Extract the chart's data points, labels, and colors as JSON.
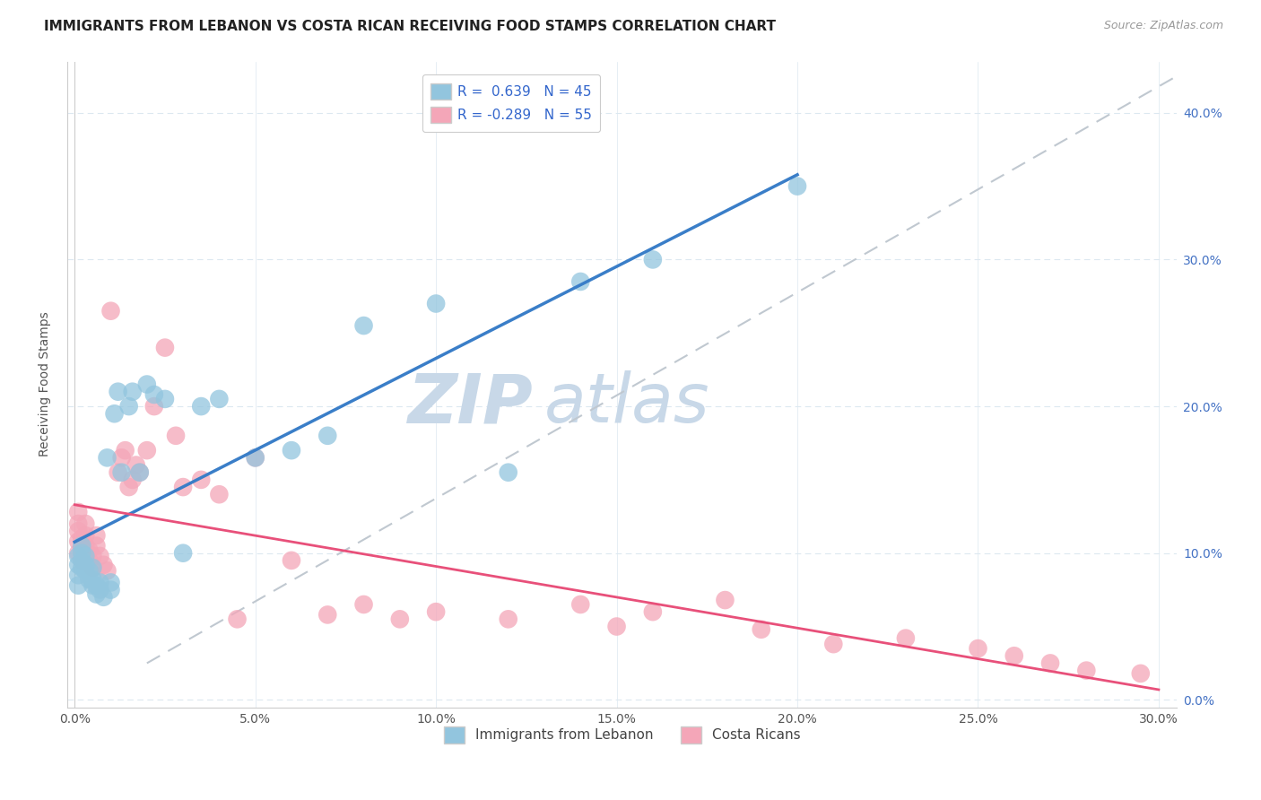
{
  "title": "IMMIGRANTS FROM LEBANON VS COSTA RICAN RECEIVING FOOD STAMPS CORRELATION CHART",
  "source": "Source: ZipAtlas.com",
  "ylabel": "Receiving Food Stamps",
  "xlabel_ticks": [
    "0.0%",
    "5.0%",
    "10.0%",
    "15.0%",
    "20.0%",
    "25.0%",
    "30.0%"
  ],
  "xlabel_vals": [
    0.0,
    0.05,
    0.1,
    0.15,
    0.2,
    0.25,
    0.3
  ],
  "ylabel_ticks": [
    "0.0%",
    "10.0%",
    "20.0%",
    "30.0%",
    "40.0%"
  ],
  "ylabel_vals": [
    0.0,
    0.1,
    0.2,
    0.3,
    0.4
  ],
  "xlim": [
    -0.002,
    0.305
  ],
  "ylim": [
    -0.005,
    0.435
  ],
  "blue_R": 0.639,
  "blue_N": 45,
  "pink_R": -0.289,
  "pink_N": 55,
  "blue_color": "#92c5de",
  "pink_color": "#f4a6b8",
  "blue_line_color": "#3a7ec8",
  "pink_line_color": "#e8507a",
  "ref_line_color": "#c0c8d0",
  "background_color": "#ffffff",
  "grid_color": "#dce8f0",
  "legend_label_blue": "Immigrants from Lebanon",
  "legend_label_pink": "Costa Ricans",
  "blue_scatter_x": [
    0.001,
    0.001,
    0.001,
    0.001,
    0.002,
    0.002,
    0.002,
    0.002,
    0.003,
    0.003,
    0.003,
    0.004,
    0.004,
    0.005,
    0.005,
    0.005,
    0.006,
    0.006,
    0.007,
    0.007,
    0.008,
    0.009,
    0.01,
    0.01,
    0.011,
    0.012,
    0.013,
    0.015,
    0.016,
    0.018,
    0.02,
    0.022,
    0.025,
    0.03,
    0.035,
    0.04,
    0.05,
    0.06,
    0.07,
    0.08,
    0.1,
    0.12,
    0.14,
    0.16,
    0.2
  ],
  "blue_scatter_y": [
    0.078,
    0.085,
    0.092,
    0.098,
    0.09,
    0.095,
    0.1,
    0.105,
    0.088,
    0.092,
    0.098,
    0.082,
    0.088,
    0.078,
    0.082,
    0.09,
    0.072,
    0.078,
    0.075,
    0.08,
    0.07,
    0.165,
    0.075,
    0.08,
    0.195,
    0.21,
    0.155,
    0.2,
    0.21,
    0.155,
    0.215,
    0.208,
    0.205,
    0.1,
    0.2,
    0.205,
    0.165,
    0.17,
    0.18,
    0.255,
    0.27,
    0.155,
    0.285,
    0.3,
    0.35
  ],
  "pink_scatter_x": [
    0.001,
    0.001,
    0.001,
    0.001,
    0.001,
    0.002,
    0.002,
    0.002,
    0.003,
    0.003,
    0.003,
    0.004,
    0.004,
    0.005,
    0.005,
    0.006,
    0.006,
    0.007,
    0.008,
    0.009,
    0.01,
    0.012,
    0.013,
    0.014,
    0.015,
    0.016,
    0.017,
    0.018,
    0.02,
    0.022,
    0.025,
    0.028,
    0.03,
    0.035,
    0.04,
    0.045,
    0.05,
    0.06,
    0.07,
    0.08,
    0.09,
    0.1,
    0.12,
    0.14,
    0.15,
    0.16,
    0.18,
    0.19,
    0.21,
    0.23,
    0.25,
    0.26,
    0.27,
    0.28,
    0.295
  ],
  "pink_scatter_y": [
    0.1,
    0.108,
    0.115,
    0.12,
    0.128,
    0.095,
    0.102,
    0.11,
    0.105,
    0.112,
    0.12,
    0.095,
    0.102,
    0.09,
    0.098,
    0.105,
    0.112,
    0.098,
    0.092,
    0.088,
    0.265,
    0.155,
    0.165,
    0.17,
    0.145,
    0.15,
    0.16,
    0.155,
    0.17,
    0.2,
    0.24,
    0.18,
    0.145,
    0.15,
    0.14,
    0.055,
    0.165,
    0.095,
    0.058,
    0.065,
    0.055,
    0.06,
    0.055,
    0.065,
    0.05,
    0.06,
    0.068,
    0.048,
    0.038,
    0.042,
    0.035,
    0.03,
    0.025,
    0.02,
    0.018
  ],
  "title_fontsize": 11,
  "source_fontsize": 9,
  "axis_label_fontsize": 10,
  "tick_fontsize": 10,
  "legend_fontsize": 11,
  "watermark_zip_color": "#c8d8e8",
  "watermark_atlas_color": "#c8d8e8",
  "watermark_fontsize": 55
}
